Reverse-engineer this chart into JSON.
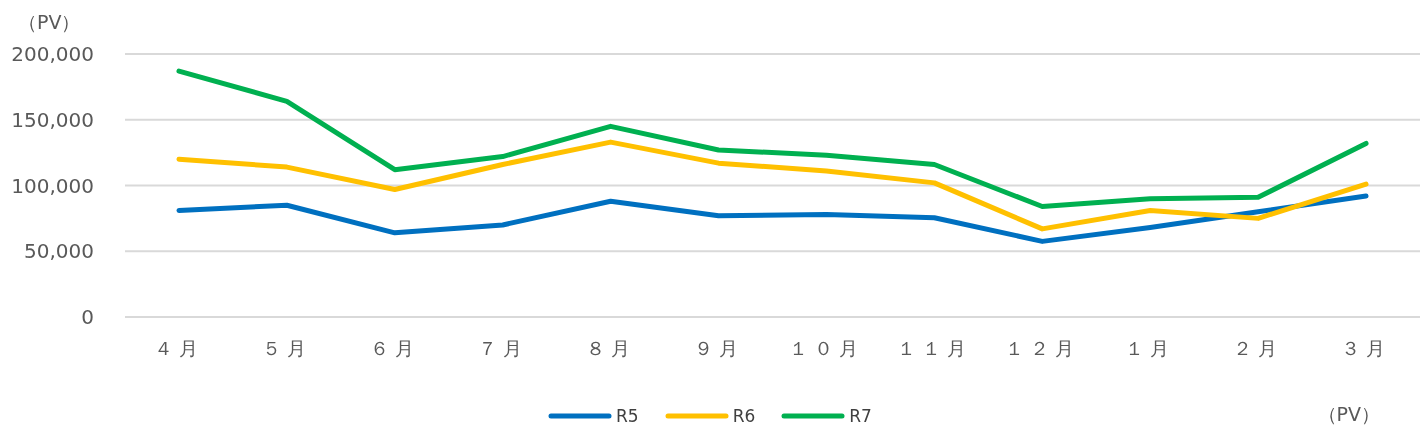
{
  "chart_data": {
    "type": "line",
    "ylabel": "（PV）",
    "categories": [
      "４月",
      "５月",
      "６月",
      "７月",
      "８月",
      "９月",
      "１０月",
      "１１月",
      "１２月",
      "１月",
      "２月",
      "３月"
    ],
    "series": [
      {
        "name": "R5",
        "color": "#0070c0",
        "values": [
          81000,
          85000,
          64000,
          70000,
          88000,
          77000,
          78000,
          75500,
          57500,
          68000,
          80000,
          92000
        ]
      },
      {
        "name": "R6",
        "color": "#ffc000",
        "values": [
          120000,
          114000,
          97000,
          116000,
          133000,
          117000,
          111000,
          102000,
          67000,
          81000,
          75000,
          101000
        ]
      },
      {
        "name": "R7",
        "color": "#00b050",
        "values": [
          187000,
          164000,
          112000,
          122000,
          145000,
          127000,
          123000,
          116000,
          84000,
          90000,
          91000,
          132000
        ]
      }
    ],
    "ylim": [
      0,
      200000
    ],
    "yticks": [
      0,
      {
        "value": 50000,
        "label": "50,000"
      },
      {
        "value": 100000,
        "label": "100,000"
      },
      {
        "value": 150000,
        "label": "150,000"
      },
      {
        "value": 200000,
        "label": "200,000"
      }
    ],
    "grid": "y",
    "legend": "bottom",
    "annotations": [
      "（PV）"
    ]
  }
}
